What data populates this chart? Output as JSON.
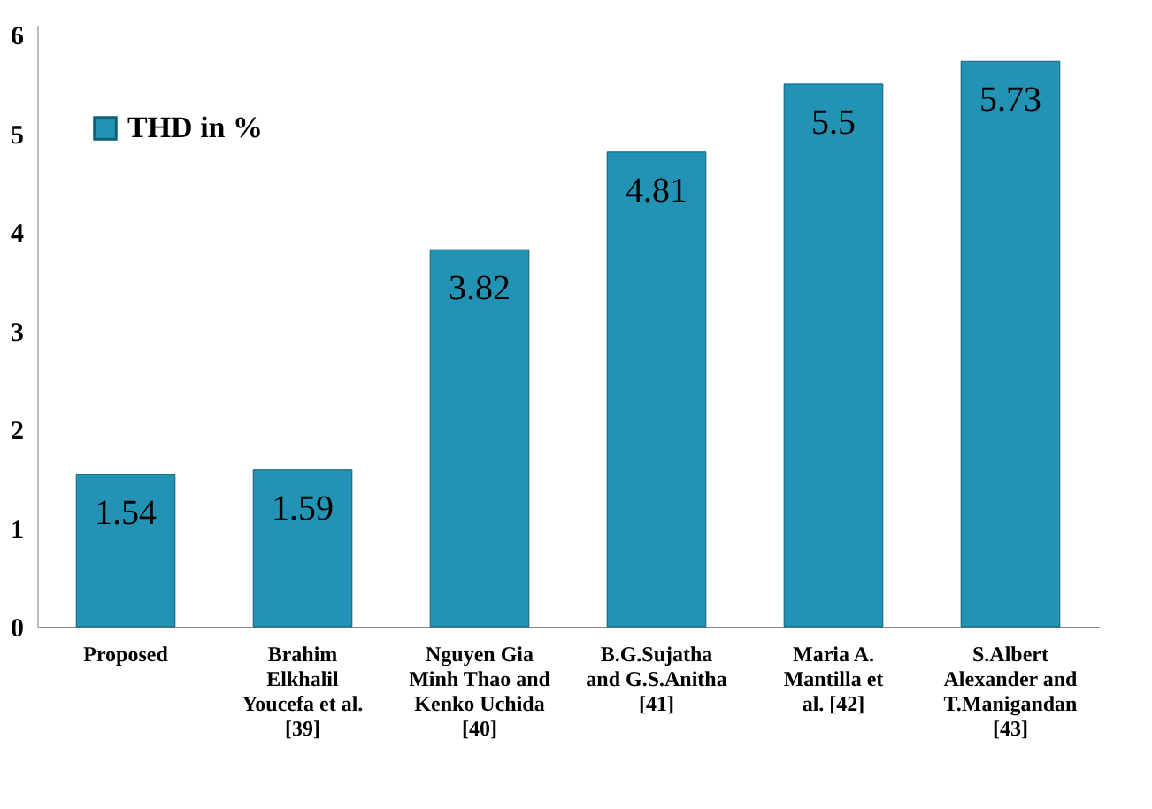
{
  "chart_data": {
    "type": "bar",
    "categories": [
      "Proposed",
      "Brahim Elkhalil Youcefa et al. [39]",
      "Nguyen Gia Minh Thao and Kenko Uchida [40]",
      "B.G.Sujatha and G.S.Anitha [41]",
      "Maria A. Mantilla et al. [42]",
      "S.Albert Alexander and T.Manigandan [43]"
    ],
    "series": [
      {
        "name": "THD in %",
        "color": "#2293b5",
        "values": [
          1.54,
          1.59,
          3.82,
          4.81,
          5.5,
          5.73
        ]
      }
    ],
    "ylim": [
      0,
      6.1
    ],
    "yticks": [
      0,
      1,
      2,
      3,
      4,
      5,
      6
    ],
    "grid": false,
    "legend": "top left",
    "data_labels": true
  }
}
